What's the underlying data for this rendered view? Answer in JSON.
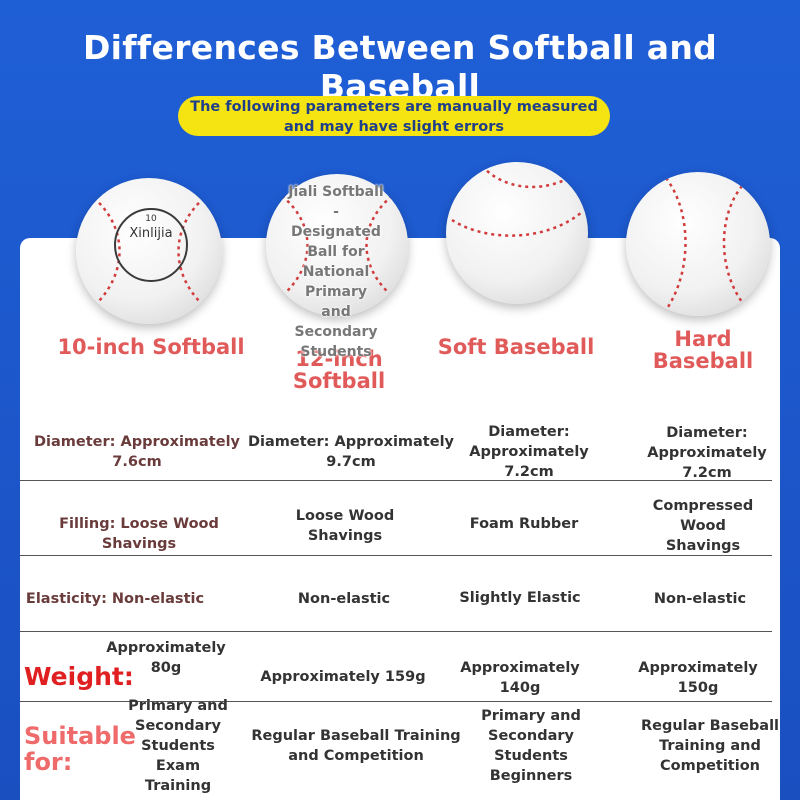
{
  "title": "Differences Between Softball and Baseball",
  "note": {
    "line1": "The following parameters are manually measured",
    "line2": "and may have slight errors"
  },
  "balls": [
    {
      "label": "10-inch Softball",
      "stamp_num": "10",
      "stamp_brand": "Xinlijia"
    },
    {
      "label": "12-inch Softball",
      "overlay": "Jiali Softball - Designated Ball for National Primary and Secondary Students"
    },
    {
      "label": "Soft Baseball"
    },
    {
      "label": "Hard Baseball"
    }
  ],
  "rows": {
    "diameter": [
      "Diameter: Approximately 7.6cm",
      "Diameter: Approximately 9.7cm",
      "Diameter: Approximately 7.2cm",
      "Diameter: Approximately 7.2cm"
    ],
    "filling": [
      "Filling: Loose Wood Shavings",
      "Loose Wood Shavings",
      "Foam Rubber",
      "Compressed Wood Shavings"
    ],
    "elasticity": [
      "Elasticity: Non-elastic",
      "Non-elastic",
      "Slightly Elastic",
      "Non-elastic"
    ],
    "weight_label": "Weight:",
    "weight": [
      "Approximately 80g",
      "Approximately 159g",
      "Approximately 140g",
      "Approximately 150g"
    ],
    "suitable_label": "Suitable for:",
    "suitable": [
      "Primary and Secondary Students Exam Training",
      "Regular Baseball Training and Competition",
      "Primary and Secondary Students Beginners",
      "Regular Baseball Training and Competition"
    ]
  },
  "colors": {
    "background": "#1f5fd6",
    "note_bg": "#f6e312",
    "label_red": "#e15a5a",
    "weight_red": "#e02020",
    "suitable_pink": "#ef6a6a"
  }
}
